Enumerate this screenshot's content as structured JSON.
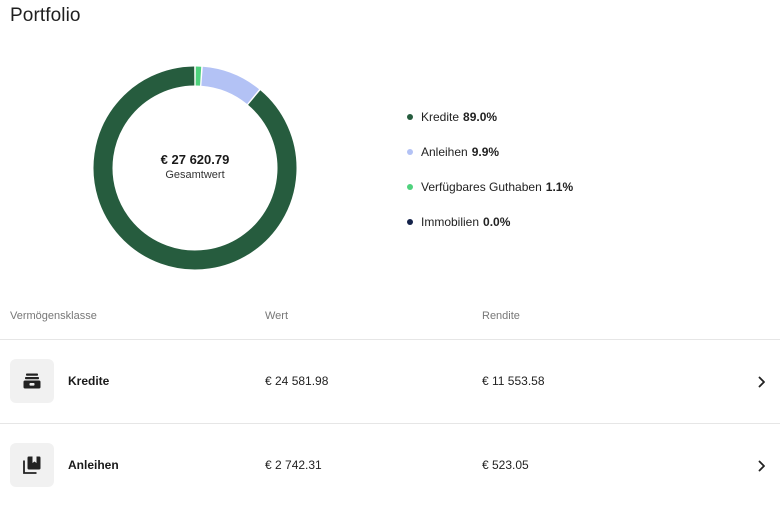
{
  "page": {
    "title": "Portfolio"
  },
  "donut": {
    "total_value": "€ 27 620.79",
    "total_label": "Gesamtwert",
    "segments": [
      {
        "label": "Kredite",
        "value": 89.0,
        "color": "#265c3e"
      },
      {
        "label": "Anleihen",
        "value": 9.9,
        "color": "#b3c2f5"
      },
      {
        "label": "Verfügbares Guthaben",
        "value": 1.1,
        "color": "#4fd27d"
      },
      {
        "label": "Immobilien",
        "value": 0.0,
        "color": "#14224a"
      }
    ]
  },
  "legend": [
    {
      "label": "Kredite",
      "pct": "89.0%",
      "color": "#265c3e"
    },
    {
      "label": "Anleihen",
      "pct": "9.9%",
      "color": "#b3c2f5"
    },
    {
      "label": "Verfügbares Guthaben",
      "pct": "1.1%",
      "color": "#4fd27d"
    },
    {
      "label": "Immobilien",
      "pct": "0.0%",
      "color": "#14224a"
    }
  ],
  "table": {
    "headers": {
      "asset_class": "Vermögensklasse",
      "value": "Wert",
      "return": "Rendite"
    },
    "rows": [
      {
        "name": "Kredite",
        "value": "€ 24 581.98",
        "return": "€ 11 553.58",
        "icon": "wallet-icon"
      },
      {
        "name": "Anleihen",
        "value": "€ 2 742.31",
        "return": "€ 523.05",
        "icon": "bonds-icon"
      }
    ]
  }
}
